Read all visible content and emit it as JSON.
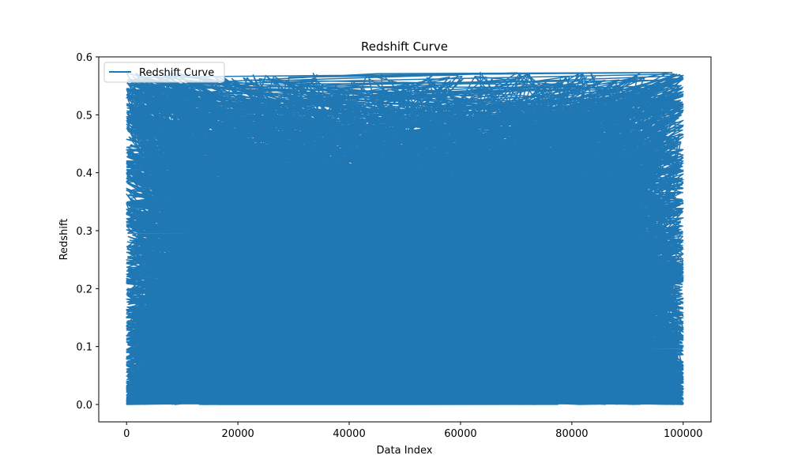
{
  "chart_data": {
    "type": "line",
    "title": "Redshift Curve",
    "xlabel": "Data Index",
    "ylabel": "Redshift",
    "xlim": [
      -5000,
      105000
    ],
    "ylim": [
      -0.03,
      0.6
    ],
    "xticks": [
      0,
      20000,
      40000,
      60000,
      80000,
      100000
    ],
    "yticks": [
      0.0,
      0.1,
      0.2,
      0.3,
      0.4,
      0.5,
      0.6
    ],
    "xtick_labels": [
      "0",
      "20000",
      "40000",
      "60000",
      "80000",
      "100000"
    ],
    "ytick_labels": [
      "0.0",
      "0.1",
      "0.2",
      "0.3",
      "0.4",
      "0.5",
      "0.6"
    ],
    "grid": false,
    "legend": "upper-left",
    "series": [
      {
        "name": "Redshift Curve",
        "color": "#1f77b4",
        "summary": {
          "x_range": [
            0,
            100000
          ],
          "y_range": [
            0.0,
            0.573
          ]
        }
      }
    ]
  }
}
